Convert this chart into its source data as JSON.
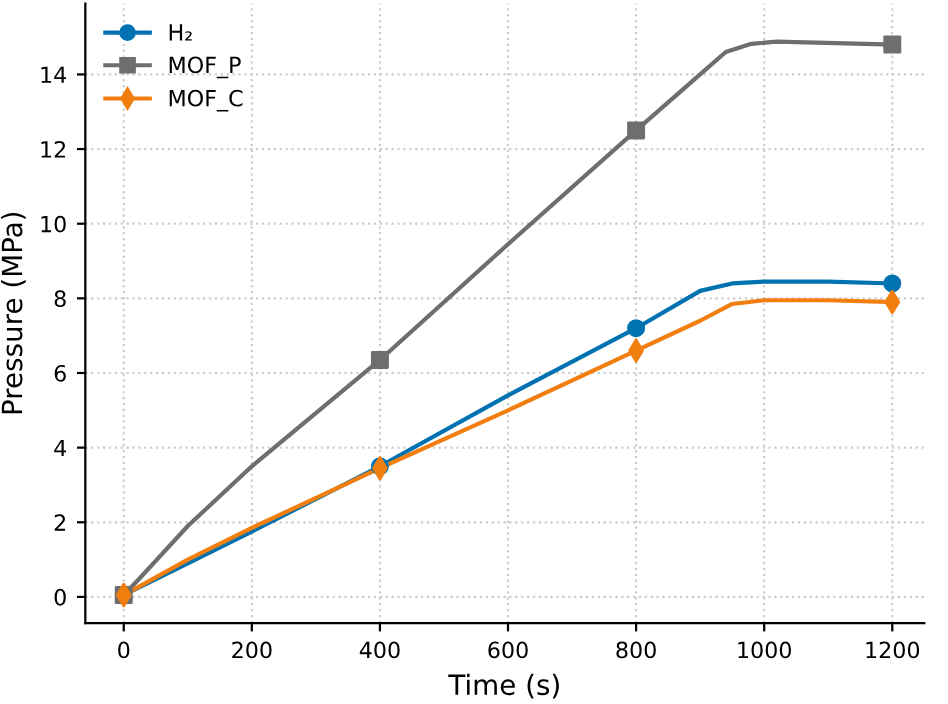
{
  "chart_data": {
    "type": "line",
    "xlabel": "Time (s)",
    "ylabel": "Pressure (MPa)",
    "xlim": [
      -60,
      1250
    ],
    "ylim": [
      -0.7,
      15.9
    ],
    "xticks": [
      0,
      200,
      400,
      600,
      800,
      1000,
      1200
    ],
    "yticks": [
      0,
      2,
      4,
      6,
      8,
      10,
      12,
      14
    ],
    "grid": true,
    "legend": "top left",
    "series": [
      {
        "name": "H₂",
        "color": "#0072b2",
        "x": [
          0,
          100,
          200,
          400,
          600,
          800,
          900,
          950,
          1000,
          1100,
          1200
        ],
        "values": [
          0.05,
          0.9,
          1.75,
          3.5,
          5.4,
          7.2,
          8.2,
          8.4,
          8.45,
          8.45,
          8.4
        ]
      },
      {
        "color": "#0072b2",
        "type": "scatter",
        "marker": "circle",
        "x": [
          400,
          800,
          1200
        ],
        "values": [
          3.5,
          7.2,
          8.4
        ]
      },
      {
        "name": "MOF_P",
        "color": "#6e6e6e",
        "x": [
          0,
          25,
          100,
          200,
          400,
          600,
          800,
          900,
          940,
          980,
          1020,
          1200
        ],
        "values": [
          0.05,
          0.5,
          1.9,
          3.5,
          6.35,
          9.45,
          12.5,
          14.0,
          14.6,
          14.82,
          14.88,
          14.8
        ]
      },
      {
        "color": "#6e6e6e",
        "type": "scatter",
        "marker": "square",
        "x": [
          0,
          400,
          800,
          1200
        ],
        "values": [
          0.05,
          6.35,
          12.5,
          14.8
        ]
      },
      {
        "name": "MOF_C",
        "color": "#f07f0f",
        "x": [
          0,
          100,
          200,
          400,
          600,
          800,
          900,
          950,
          1000,
          1100,
          1200
        ],
        "values": [
          0.05,
          1.0,
          1.85,
          3.45,
          5.0,
          6.6,
          7.4,
          7.85,
          7.95,
          7.95,
          7.9
        ]
      },
      {
        "color": "#f07f0f",
        "type": "scatter",
        "marker": "diamond",
        "x": [
          0,
          400,
          800,
          1200
        ],
        "values": [
          0.05,
          3.45,
          6.6,
          7.9
        ]
      }
    ]
  }
}
